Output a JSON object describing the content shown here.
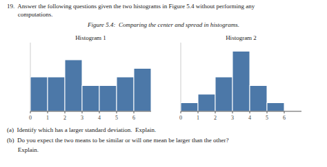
{
  "title": "Figure 5.4:  Comparing the center and spread in histograms.",
  "annotations": [
    "19.  Answer the following questions given the two histograms in Figure 5.4 without performing any",
    "       computations.",
    "(a)  Identify which has a larger standard deviation.  Explain.",
    "(b)  Do you expect the two means to be similar or will one mean be larger than the other?",
    "       Explain."
  ],
  "chart_data": [
    {
      "type": "histogram",
      "title": "Histogram 1",
      "bins": [
        0,
        1,
        2,
        3,
        4,
        5,
        6,
        7
      ],
      "values": [
        4,
        4,
        6,
        3,
        3,
        4,
        5
      ],
      "color": "#4c78a8",
      "xlim": [
        0,
        7
      ],
      "xticks": [
        0,
        1,
        2,
        3,
        4,
        5,
        6
      ],
      "ylim": [
        0,
        8
      ],
      "tick_labels": "x"
    },
    {
      "type": "histogram",
      "title": "Histogram 2",
      "bins": [
        0,
        1,
        2,
        3,
        4,
        5,
        6,
        7
      ],
      "values": [
        1,
        2,
        4,
        7,
        3,
        1,
        0
      ],
      "color": "#4c78a8",
      "xlim": [
        0,
        7
      ],
      "xticks": [
        0,
        1,
        2,
        3,
        4,
        5,
        6
      ],
      "ylim": [
        0,
        8
      ],
      "tick_labels": "x"
    }
  ]
}
